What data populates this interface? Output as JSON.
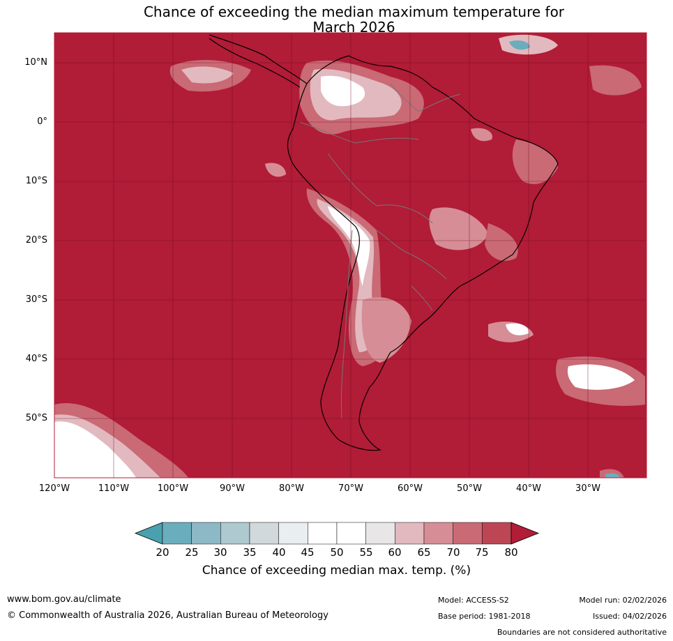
{
  "title": {
    "line1": "Chance of exceeding the median maximum temperature for",
    "line2": "March 2026"
  },
  "map": {
    "region": "South America",
    "background_color": "#b11c37",
    "latitude_labels": [
      "10°N",
      "0°",
      "10°S",
      "20°S",
      "30°S",
      "40°S",
      "50°S"
    ],
    "longitude_labels": [
      "120°W",
      "110°W",
      "100°W",
      "90°W",
      "80°W",
      "70°W",
      "60°W",
      "50°W",
      "40°W",
      "30°W"
    ]
  },
  "colorbar": {
    "ticks": [
      "20",
      "25",
      "30",
      "35",
      "40",
      "45",
      "50",
      "55",
      "60",
      "65",
      "70",
      "75",
      "80"
    ],
    "colors": [
      "#4aa0ae",
      "#6aaebd",
      "#8db9c6",
      "#aec9d0",
      "#d2d9dc",
      "#e9eef1",
      "#ffffff",
      "#ffffff",
      "#e8e6e7",
      "#e2b9bf",
      "#d68d96",
      "#c96a75",
      "#bd4655",
      "#b11c37"
    ],
    "label": "Chance of exceeding median max. temp. (%)"
  },
  "footer": {
    "url": "www.bom.gov.au/climate",
    "copyright": "© Commonwealth of Australia 2026, Australian Bureau of Meteorology",
    "model": "Model: ACCESS-S2",
    "base_period": "Base period: 1981-2018",
    "model_run": "Model run: 02/02/2026",
    "issued": "Issued: 04/02/2026",
    "boundaries": "Boundaries are not considered authoritative"
  }
}
